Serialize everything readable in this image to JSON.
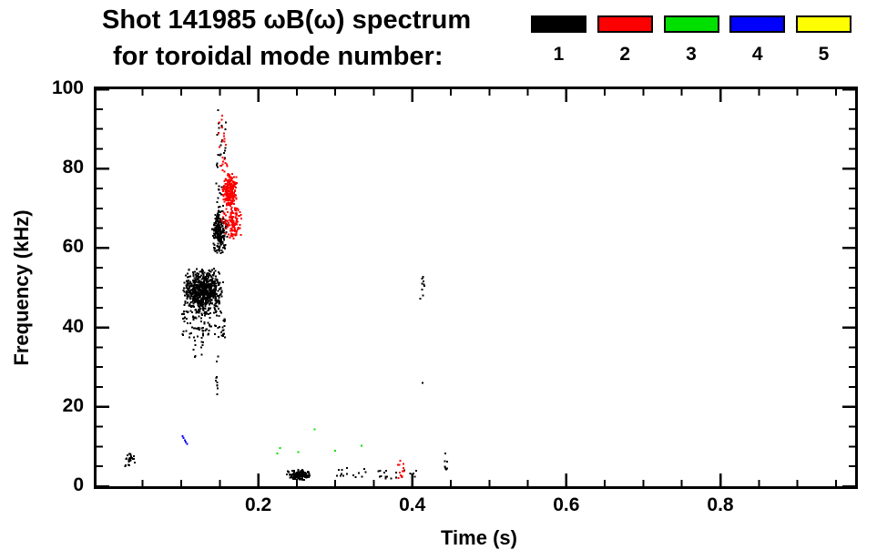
{
  "title": {
    "line1": "Shot 141985 ωB(ω) spectrum",
    "line2": "for toroidal mode number:"
  },
  "legend": {
    "modes": [
      {
        "label": "1",
        "color": "#000000"
      },
      {
        "label": "2",
        "color": "#ff0000"
      },
      {
        "label": "3",
        "color": "#00e000"
      },
      {
        "label": "4",
        "color": "#0000ff"
      },
      {
        "label": "5",
        "color": "#ffff00"
      }
    ]
  },
  "axes": {
    "xlabel": "Time (s)",
    "ylabel": "Frequency (kHz)",
    "x_range": [
      -0.01,
      0.975
    ],
    "y_range": [
      0,
      100
    ],
    "x_major": [
      0.2,
      0.4,
      0.6,
      0.8
    ],
    "x_major_labels": [
      "0.2",
      "0.4",
      "0.6",
      "0.8"
    ],
    "x_minor": [
      0.05,
      0.1,
      0.15,
      0.25,
      0.3,
      0.35,
      0.45,
      0.5,
      0.55,
      0.65,
      0.7,
      0.75,
      0.85,
      0.9,
      0.95
    ],
    "y_major": [
      0,
      20,
      40,
      60,
      80,
      100
    ],
    "y_major_labels": [
      "0",
      "20",
      "40",
      "60",
      "80",
      "100"
    ],
    "y_minor": [
      5,
      10,
      15,
      25,
      30,
      35,
      45,
      50,
      55,
      65,
      70,
      75,
      85,
      90,
      95
    ]
  },
  "chart_data": {
    "type": "scatter",
    "title": "Shot 141985 ωB(ω) spectrum for toroidal mode number",
    "xlabel": "Time (s)",
    "ylabel": "Frequency (kHz)",
    "x_range": [
      -0.01,
      0.975
    ],
    "y_range": [
      0,
      100
    ],
    "legend_position": "top-right",
    "grid": false,
    "series": [
      {
        "name": "mode 1",
        "mode": 1,
        "color": "#000000",
        "clusters": [
          {
            "t": [
              0.101,
              0.156
            ],
            "f": [
              43,
              55
            ],
            "n": 700,
            "size": 2,
            "dist": "center"
          },
          {
            "t": [
              0.1,
              0.157
            ],
            "f": [
              37,
              44
            ],
            "n": 90,
            "size": 2,
            "dist": "uniform"
          },
          {
            "t": [
              0.139,
              0.16
            ],
            "f": [
              58,
              70
            ],
            "n": 220,
            "size": 2,
            "dist": "center"
          },
          {
            "t": [
              0.145,
              0.158
            ],
            "f": [
              70,
              95
            ],
            "n": 35,
            "size": 2,
            "dist": "uniform"
          },
          {
            "t": [
              0.024,
              0.042
            ],
            "f": [
              4,
              9
            ],
            "n": 26,
            "size": 2,
            "dist": "center"
          },
          {
            "t": [
              0.236,
              0.268
            ],
            "f": [
              1.5,
              4.2
            ],
            "n": 150,
            "size": 2,
            "dist": "center"
          },
          {
            "t": [
              0.3,
              0.345
            ],
            "f": [
              2,
              5
            ],
            "n": 14,
            "size": 2,
            "dist": "uniform"
          },
          {
            "t": [
              0.355,
              0.406
            ],
            "f": [
              1.5,
              4
            ],
            "n": 20,
            "size": 2,
            "dist": "uniform"
          },
          {
            "t": [
              0.41,
              0.417
            ],
            "f": [
              47,
              53
            ],
            "n": 10,
            "size": 2,
            "dist": "uniform"
          }
        ],
        "streaks": [
          {
            "t": 0.1465,
            "f": [
              23,
              33
            ],
            "n": 10,
            "tj": 0.003
          },
          {
            "t": 0.117,
            "f": [
              30,
              40
            ],
            "n": 8,
            "tj": 0.003
          },
          {
            "t": 0.127,
            "f": [
              32,
              40
            ],
            "n": 7,
            "tj": 0.003
          },
          {
            "t": 0.4435,
            "f": [
              3.5,
              8.5
            ],
            "n": 9,
            "tj": 0.003
          }
        ],
        "points": [
          [
            0.4135,
            26
          ]
        ]
      },
      {
        "name": "mode 2",
        "mode": 2,
        "color": "#ff0000",
        "clusters": [
          {
            "t": [
              0.152,
              0.173
            ],
            "f": [
              70,
              79
            ],
            "n": 200,
            "size": 2,
            "dist": "center"
          },
          {
            "t": [
              0.152,
              0.179
            ],
            "f": [
              62,
              71
            ],
            "n": 130,
            "size": 2,
            "dist": "center"
          },
          {
            "t": [
              0.149,
              0.16
            ],
            "f": [
              79,
              88
            ],
            "n": 16,
            "size": 2,
            "dist": "uniform"
          },
          {
            "t": [
              0.148,
              0.156
            ],
            "f": [
              88,
              94
            ],
            "n": 8,
            "size": 2,
            "dist": "uniform"
          },
          {
            "t": [
              0.381,
              0.39
            ],
            "f": [
              2,
              7
            ],
            "n": 14,
            "size": 2,
            "dist": "uniform"
          }
        ],
        "streaks": [],
        "points": []
      },
      {
        "name": "mode 3",
        "mode": 3,
        "color": "#00e000",
        "clusters": [],
        "streaks": [],
        "points": [
          [
            0.225,
            8.3
          ],
          [
            0.2285,
            9.6
          ],
          [
            0.252,
            8.6
          ],
          [
            0.3,
            9.0
          ],
          [
            0.273,
            14.3
          ],
          [
            0.334,
            10.2
          ]
        ]
      },
      {
        "name": "mode 4",
        "mode": 4,
        "color": "#0000ff",
        "clusters": [],
        "streaks": [],
        "points": [
          [
            0.1015,
            12.6
          ],
          [
            0.103,
            12.1
          ],
          [
            0.1045,
            11.6
          ],
          [
            0.106,
            11.1
          ],
          [
            0.1075,
            10.7
          ]
        ]
      },
      {
        "name": "mode 5",
        "mode": 5,
        "color": "#ffff00",
        "clusters": [],
        "streaks": [],
        "points": []
      }
    ]
  }
}
